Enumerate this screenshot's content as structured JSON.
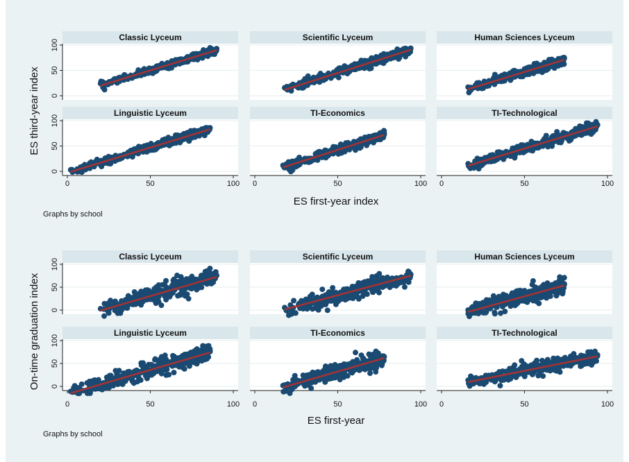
{
  "chart_data": [
    {
      "type": "scatter",
      "note": "Graphs by school",
      "xlabel": "ES first-year index",
      "ylabel": "ES third-year index",
      "xlim": [
        0,
        100
      ],
      "ylim": [
        0,
        100
      ],
      "xticks": [
        0,
        50,
        100
      ],
      "yticks": [
        0,
        50,
        100
      ],
      "panels": [
        {
          "title": "Classic Lyceum",
          "x_range": [
            20,
            90
          ],
          "fit": {
            "intercept": 0,
            "slope": 1.0
          },
          "spread": 3
        },
        {
          "title": "Scientific Lyceum",
          "x_range": [
            18,
            94
          ],
          "fit": {
            "intercept": -7,
            "slope": 1.04
          },
          "spread": 4
        },
        {
          "title": "Human Sciences Lyceum",
          "x_range": [
            16,
            74
          ],
          "fit": {
            "intercept": -3,
            "slope": 1.0
          },
          "spread": 4
        },
        {
          "title": "Linguistic Lyceum",
          "x_range": [
            2,
            86
          ],
          "fit": {
            "intercept": -3,
            "slope": 1.0
          },
          "spread": 4
        },
        {
          "title": "TI-Economics",
          "x_range": [
            17,
            78
          ],
          "fit": {
            "intercept": -10,
            "slope": 1.05
          },
          "spread": 4
        },
        {
          "title": "TI-Technological",
          "x_range": [
            16,
            94
          ],
          "fit": {
            "intercept": -5,
            "slope": 1.0
          },
          "spread": 5
        }
      ]
    },
    {
      "type": "scatter",
      "note": "Graphs by school",
      "xlabel": "ES first-year",
      "ylabel": "On-time graduation index",
      "xlim": [
        0,
        100
      ],
      "ylim": [
        0,
        100
      ],
      "xticks": [
        0,
        50,
        100
      ],
      "yticks": [
        0,
        50,
        100
      ],
      "panels": [
        {
          "title": "Classic Lyceum",
          "x_range": [
            20,
            90
          ],
          "fit": {
            "intercept": -22,
            "slope": 1.05
          },
          "spread": 9
        },
        {
          "title": "Scientific Lyceum",
          "x_range": [
            18,
            94
          ],
          "fit": {
            "intercept": -16,
            "slope": 0.97
          },
          "spread": 8
        },
        {
          "title": "Human Sciences Lyceum",
          "x_range": [
            16,
            74
          ],
          "fit": {
            "intercept": -20,
            "slope": 1.0
          },
          "spread": 8
        },
        {
          "title": "Linguistic Lyceum",
          "x_range": [
            2,
            86
          ],
          "fit": {
            "intercept": -17,
            "slope": 1.06
          },
          "spread": 9
        },
        {
          "title": "TI-Economics",
          "x_range": [
            17,
            78
          ],
          "fit": {
            "intercept": -20,
            "slope": 1.05
          },
          "spread": 8
        },
        {
          "title": "TI-Technological",
          "x_range": [
            16,
            94
          ],
          "fit": {
            "intercept": -2,
            "slope": 0.72
          },
          "spread": 7
        }
      ]
    }
  ]
}
